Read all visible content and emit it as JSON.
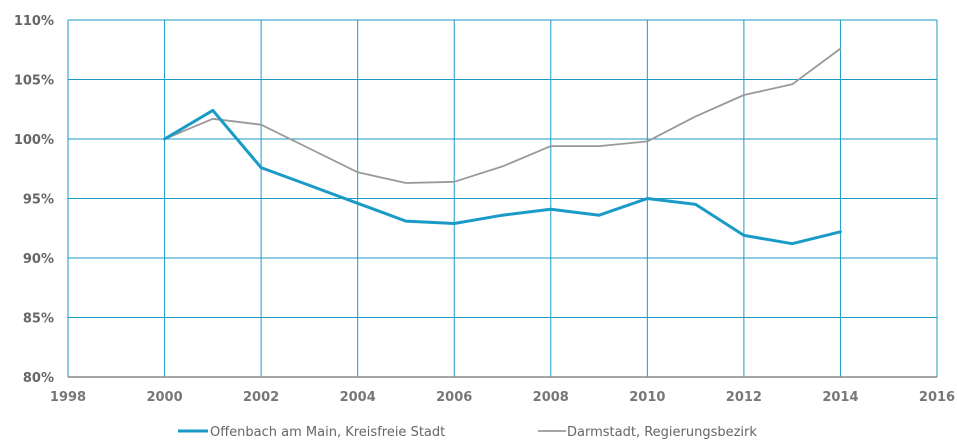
{
  "chart_data": {
    "type": "line",
    "title": "",
    "xlabel": "",
    "ylabel": "",
    "xlim": [
      1998,
      2016
    ],
    "ylim": [
      80,
      110
    ],
    "x_ticks": [
      1998,
      2000,
      2002,
      2004,
      2006,
      2008,
      2010,
      2012,
      2014,
      2016
    ],
    "y_ticks": [
      80,
      85,
      90,
      95,
      100,
      105,
      110
    ],
    "y_tick_labels": [
      "80%",
      "85%",
      "90%",
      "95%",
      "100%",
      "105%",
      "110%"
    ],
    "grid": true,
    "legend_position": "bottom",
    "series": [
      {
        "name": "Offenbach am Main, Kreisfreie Stadt",
        "color": "#1a9bc7",
        "x": [
          2000,
          2001,
          2002,
          2003,
          2004,
          2005,
          2006,
          2007,
          2008,
          2009,
          2010,
          2011,
          2012,
          2013,
          2014
        ],
        "values": [
          100,
          102.4,
          97.6,
          96.1,
          94.6,
          93.1,
          92.9,
          93.6,
          94.1,
          93.6,
          95.0,
          94.5,
          91.9,
          91.2,
          92.2
        ]
      },
      {
        "name": "Darmstadt, Regierungsbezirk",
        "color": "#999999",
        "x": [
          2000,
          2001,
          2002,
          2003,
          2004,
          2005,
          2006,
          2007,
          2008,
          2009,
          2010,
          2011,
          2012,
          2013,
          2014
        ],
        "values": [
          100,
          101.7,
          101.2,
          99.2,
          97.2,
          96.3,
          96.4,
          97.7,
          99.4,
          99.4,
          99.8,
          101.9,
          103.7,
          104.6,
          107.6
        ]
      }
    ]
  }
}
